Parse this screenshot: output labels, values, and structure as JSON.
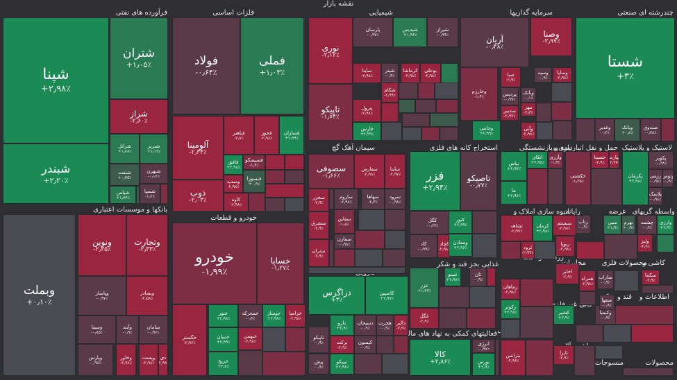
{
  "title": "نقشه بازار",
  "colors": {
    "g3": "#1b8a55",
    "g2": "#2a7b54",
    "g1": "#3d5b4c",
    "n": "#4a4a52",
    "r1": "#5a3a47",
    "r2": "#7d2e44",
    "r3": "#9a2540"
  },
  "headers": [
    {
      "id": "h-oil",
      "label": "فرآورده های نفتی"
    },
    {
      "id": "h-metal",
      "label": "فلزات اساسی"
    },
    {
      "id": "h-chem",
      "label": "شیمیایی"
    },
    {
      "id": "h-inv",
      "label": "سرمایه گذاریها"
    },
    {
      "id": "h-multi",
      "label": "چندرشته ای صنعتی"
    },
    {
      "id": "h-bank",
      "label": "بانکها و موسسات اعتباری"
    },
    {
      "id": "h-auto",
      "label": "خودرو و قطعات"
    },
    {
      "id": "h-cement",
      "label": "سیمان آهک گچ"
    },
    {
      "id": "h-mine",
      "label": "استخراج کانه های فلزی"
    },
    {
      "id": "h-insur",
      "label": "بیمه و بازنشستگی"
    },
    {
      "id": "h-trans",
      "label": "حمل و نقل انبارداری و"
    },
    {
      "id": "h-plast",
      "label": "لاستیک و پلاستیک"
    },
    {
      "id": "h-build",
      "label": "انبوه سازی املاک و"
    },
    {
      "id": "h-comp",
      "label": "رایانه"
    },
    {
      "id": "h-offer",
      "label": "عرضه"
    },
    {
      "id": "h-brok",
      "label": "واسطه گریهای"
    },
    {
      "id": "h-sugar",
      "label": "غذایی بجز قند و شکر"
    },
    {
      "id": "h-agri",
      "label": "زراعت و خدمات"
    },
    {
      "id": "h-tele",
      "label": "مخابرات"
    },
    {
      "id": "h-metalp",
      "label": "محصولات فلزی"
    },
    {
      "id": "h-tile",
      "label": "کاشی و"
    },
    {
      "id": "h-drug",
      "label": "دارویی"
    },
    {
      "id": "h-nonmet",
      "label": "کانی غیر فلزی"
    },
    {
      "id": "h-qand",
      "label": "قند و شکر"
    },
    {
      "id": "h-info",
      "label": "اطلاعات و"
    },
    {
      "id": "h-fin",
      "label": "فعالیتهای کمکی به نهاد های مالی"
    },
    {
      "id": "h-elec",
      "label": "دستگاههای برقی"
    },
    {
      "id": "h-mach",
      "label": "ماشین آلات و"
    },
    {
      "id": "h-wood",
      "label": "منسوجات"
    },
    {
      "id": "h-misc",
      "label": "محصولات"
    }
  ],
  "cells": [
    {
      "n": "شپنا",
      "p": "+۲٫۹۸٪",
      "c": "g3"
    },
    {
      "n": "شتران",
      "p": "+۱٫۰۵٪",
      "c": "g2"
    },
    {
      "n": "شبندر",
      "p": "+۲٫۲۰٪",
      "c": "g3"
    },
    {
      "n": "شراز",
      "p": "-۲٫۶۰٪",
      "c": "r3"
    },
    {
      "n": "شرانل",
      "p": "+۱٫۶۸٪",
      "c": "g2"
    },
    {
      "n": "شبریز",
      "p": "+۱٫۱۹٪",
      "c": "g2"
    },
    {
      "n": "شنفت",
      "p": "+۰٫۳۵٪",
      "c": "g1"
    },
    {
      "n": "شبهرن",
      "p": "-۰٫۱۶٪",
      "c": "r1"
    },
    {
      "n": "شیاس",
      "p": "+۱٫۷۴٪",
      "c": "g2"
    },
    {
      "n": "شسپا",
      "p": "-۱٫۲٪",
      "c": "r1"
    },
    {
      "n": "فولاد",
      "p": "-۰٫۶۴٪",
      "c": "r1"
    },
    {
      "n": "فملی",
      "p": "+۱٫۰۳٪",
      "c": "g2"
    },
    {
      "n": "آلومینا",
      "p": "-۲٫۳۴٪",
      "c": "r3"
    },
    {
      "n": "فباهنر",
      "p": "-۲٫۷٪",
      "c": "r3"
    },
    {
      "n": "فخوز",
      "p": "-۲٫۹۸٪",
      "c": "r3"
    },
    {
      "n": "فسازان",
      "p": "+۲٫۹۹٪",
      "c": "g3"
    },
    {
      "n": "ذوب",
      "p": "-۲٫۰۳٪",
      "c": "r3"
    },
    {
      "n": "فافق",
      "p": "+۲٫۹۸٪",
      "c": "g3"
    },
    {
      "n": "فسیسکو",
      "p": "-۱٫۴٪",
      "c": "r2"
    },
    {
      "n": "وسدید",
      "p": "-۲٫۹۸٪",
      "c": "r3"
    },
    {
      "n": "فنسوزا",
      "p": "+۰٫۹٪",
      "c": "g1"
    },
    {
      "n": "کاوه",
      "p": "-۲٫۹۸٪",
      "c": "r3"
    },
    {
      "n": "نوری",
      "p": "-۲٫۱۲٪",
      "c": "r3"
    },
    {
      "n": "پارسان",
      "p": "-۰٫۹۷٪",
      "c": "r1"
    },
    {
      "n": "شیدیس",
      "p": "+۱٫۹۶٪",
      "c": "g2"
    },
    {
      "n": "شیراز",
      "p": "-۰٫۹۹٪",
      "c": "r1"
    },
    {
      "n": "تاپیکو",
      "p": "-۱٫۷۴٪",
      "c": "r2"
    },
    {
      "n": "ساینا",
      "p": "-۲٫۹۸٪",
      "c": "r3"
    },
    {
      "n": "شپتر",
      "p": "-۰٫۴٪",
      "c": "r1"
    },
    {
      "n": "کرماشا",
      "p": "-۲٫۹۸٪",
      "c": "r3"
    },
    {
      "n": "بوعلی",
      "p": "-۲٫۹۸٪",
      "c": "r3"
    },
    {
      "n": "شکام",
      "p": "-۲٫۹۹٪",
      "c": "r3"
    },
    {
      "n": "پترول",
      "p": "-۲٫۹۸٪",
      "c": "r3"
    },
    {
      "n": "فارس",
      "p": "+۲٫۹۹٪",
      "c": "g3"
    },
    {
      "n": "آریان",
      "p": "-۰٫۴۸٪",
      "c": "r1"
    },
    {
      "n": "وصنا",
      "p": "-۲٫۹۷٪",
      "c": "r3"
    },
    {
      "n": "وخارزم",
      "p": "-۱٫۴٪",
      "c": "r2"
    },
    {
      "n": "صبا",
      "p": "-۲٫۹٪",
      "c": "r3"
    },
    {
      "n": "وسپه",
      "p": "-۰٫۹٪",
      "c": "r1"
    },
    {
      "n": "وساپا",
      "p": "-۲٫۹۸٪",
      "c": "r3"
    },
    {
      "n": "پردیس",
      "p": "-۰٫۹۷٪",
      "c": "r1"
    },
    {
      "n": "وبانک",
      "p": "-۰٫۱٪",
      "c": "r1"
    },
    {
      "n": "سدبیر",
      "p": "-۲٫۹۷٪",
      "c": "r3"
    },
    {
      "n": "مهر",
      "p": "-۲٫۳٪",
      "c": "r3"
    },
    {
      "n": "وآتی",
      "p": "-۲٫۹۸٪",
      "c": "r3"
    },
    {
      "n": "وجامی",
      "p": "+۲٫۹۹٪",
      "c": "g3"
    },
    {
      "n": "شستا",
      "p": "+۳٪",
      "c": "g3"
    },
    {
      "n": "وغدیر",
      "p": "-۰٫۲٪",
      "c": "r1"
    },
    {
      "n": "وبانک",
      "p": "+۰٫۸٪",
      "c": "g1"
    },
    {
      "n": "صندوق",
      "p": "-۰٫۷۸٪",
      "c": "r1"
    },
    {
      "n": "وبملت",
      "p": "+۰٫۱۰٪",
      "c": "n"
    },
    {
      "n": "ونوین",
      "p": "-۲٫۳۵٪",
      "c": "r3"
    },
    {
      "n": "وتجارت",
      "p": "-۲٫۳۳٪",
      "c": "r3"
    },
    {
      "n": "وپاسار",
      "p": "-۰٫۹۷٪",
      "c": "r1"
    },
    {
      "n": "وبصادر",
      "p": "-۲٫۵۸٪",
      "c": "r3"
    },
    {
      "n": "وسینا",
      "p": "-۰٫۸۵٪",
      "c": "r1"
    },
    {
      "n": "وآیند",
      "p": "-۰٫۹٪",
      "c": "r1"
    },
    {
      "n": "سامان",
      "p": "-۰٫۹۶٪",
      "c": "r1"
    },
    {
      "n": "وپارس",
      "p": "-۰٫۹۸٪",
      "c": "r1"
    },
    {
      "n": "وخاور",
      "p": "-۲٫۹۸٪",
      "c": "r3"
    },
    {
      "n": "وپست",
      "p": "-۲٫۹۸٪",
      "c": "r3"
    },
    {
      "n": "دی",
      "p": "-۲٫۹۸٪",
      "c": "r3"
    },
    {
      "n": "خودرو",
      "p": "-۱٫۹۹٪",
      "c": "r2"
    },
    {
      "n": "خساپا",
      "p": "-۱٫۲۷٪",
      "c": "r2"
    },
    {
      "n": "خگستر",
      "p": "-۲٫۹۶٪",
      "c": "r3"
    },
    {
      "n": "خنور",
      "p": "+۲٫۹۸٪",
      "c": "g3"
    },
    {
      "n": "خمحرکه",
      "p": "-۰٫۳٪",
      "c": "r1"
    },
    {
      "n": "خبهمن",
      "p": "-۲٫۹۸٪",
      "c": "r3"
    },
    {
      "n": "خوساز",
      "p": "+۲٫۹۸٪",
      "c": "g3"
    },
    {
      "n": "خزامیا",
      "p": "-۲٫۹۸٪",
      "c": "r3"
    },
    {
      "n": "خبنیان",
      "p": "+۲٫۹۹٪",
      "c": "g3"
    },
    {
      "n": "خریخ",
      "p": "+۲٫۸٪",
      "c": "g3"
    },
    {
      "n": "سصوفی",
      "p": "-۱٫۶۶٪",
      "c": "r2"
    },
    {
      "n": "سفارس",
      "p": "-۲٫۹۸٪",
      "c": "r3"
    },
    {
      "n": "ساینا",
      "p": "-۲٫۹۷٪",
      "c": "r3"
    },
    {
      "n": "سخزر",
      "p": "-۲٫۹٪",
      "c": "r3"
    },
    {
      "n": "ساروم",
      "p": "-۲٫۹۸٪",
      "c": "r1"
    },
    {
      "n": "سهاها",
      "p": "-۲٫۳٪",
      "c": "r1"
    },
    {
      "n": "سرود",
      "p": "-۰٫۹۸٪",
      "c": "r1"
    },
    {
      "n": "سشرق",
      "p": "-۲٫۹٪",
      "c": "r3"
    },
    {
      "n": "سقاین",
      "p": "-۱٫۸٪",
      "c": "r2"
    },
    {
      "n": "سمازن",
      "p": "-۰٫۹۸٪",
      "c": "r1"
    },
    {
      "n": "ستران",
      "p": "-۲٫۹٪",
      "c": "r3"
    },
    {
      "n": "فزر",
      "p": "+۲٫۹۴٪",
      "c": "g3"
    },
    {
      "n": "تاصیکو",
      "p": "-۰٫۷۷٪",
      "c": "r1"
    },
    {
      "n": "کگل",
      "p": "-۰٫۶۷٪",
      "c": "r1"
    },
    {
      "n": "کنور",
      "p": "+۲٫۹۹٪",
      "c": "g3"
    },
    {
      "n": "کاد",
      "p": "-۰٫۹۹٪",
      "c": "r1"
    },
    {
      "n": "کچاد",
      "p": "-۲٫۹۸٪",
      "c": "r3"
    },
    {
      "n": "ومعادن",
      "p": "+۲٫۹۶٪",
      "c": "g3"
    },
    {
      "n": "بپاس",
      "p": "+۲٫۹۷٪",
      "c": "g3"
    },
    {
      "n": "اتکای",
      "p": "+۲٫۹۸٪",
      "c": "g3"
    },
    {
      "n": "وآرزی",
      "p": "-۱٫۹٪",
      "c": "r2"
    },
    {
      "n": "ما",
      "p": "+۲٫۹۸٪",
      "c": "g3"
    },
    {
      "n": "حکشتی",
      "p": "-۱٫۲۵٪",
      "c": "r2"
    },
    {
      "n": "حسینا",
      "p": "-۲٫۹٪",
      "c": "r3"
    },
    {
      "n": "حپارسا",
      "p": "-۲٫۹۷٪",
      "c": "r3"
    },
    {
      "n": "پکرمان",
      "p": "+۲٫۹۸٪",
      "c": "g3"
    },
    {
      "n": "پکویر",
      "p": "-۰٫۹۸٪",
      "c": "r1"
    },
    {
      "n": "رزمی",
      "p": "-۰٫۹۸٪",
      "c": "r1"
    },
    {
      "n": "پلاسک",
      "p": "-۰٫۹۸٪",
      "c": "r1"
    },
    {
      "n": "وتوس",
      "p": "-۰٫۹٪",
      "c": "r1"
    },
    {
      "n": "ثشاهد",
      "p": "-۲٫۹۷٪",
      "c": "r3"
    },
    {
      "n": "کرمان",
      "p": "+۲٫۹۸٪",
      "c": "g3"
    },
    {
      "n": "ثرود",
      "p": "-۲٫۹۷٪",
      "c": "r3"
    },
    {
      "n": "سیستم",
      "p": "-۲٫۹۸٪",
      "c": "r3"
    },
    {
      "n": "رتاپ",
      "p": "-۰٫۹٪",
      "c": "r1"
    },
    {
      "n": "ریوپا",
      "p": "-۲٫۹۸٪",
      "c": "r3"
    },
    {
      "n": "مبین",
      "p": "+۱٫۹٪",
      "c": "g2"
    },
    {
      "n": "نهرم",
      "p": "+۰٫۹٪",
      "c": "g1"
    },
    {
      "n": "وارزی",
      "p": "+۲٫۹٪",
      "c": "g3"
    },
    {
      "n": "چشمه",
      "p": "-۰٫۹٪",
      "c": "r1"
    },
    {
      "n": "ولیز",
      "p": "-۲٫۹٪",
      "c": "r3"
    },
    {
      "n": "غزر",
      "p": "+۱٫۲۳٪",
      "c": "g2"
    },
    {
      "n": "غبینو",
      "p": "+۲٫۹۸٪",
      "c": "g3"
    },
    {
      "n": "تان",
      "p": "-۰٫۹٪",
      "c": "r1"
    },
    {
      "n": "غگل",
      "p": "-۲٫۹٪",
      "c": "r3"
    },
    {
      "n": "زماهان",
      "p": "-۲٫۹۸٪",
      "c": "r3"
    },
    {
      "n": "زکوثر",
      "p": "+۲٫۹۸٪",
      "c": "g3"
    },
    {
      "n": "اخابر",
      "p": "-۲٫۹٪",
      "c": "r3"
    },
    {
      "n": "همراه",
      "p": "-۲٫۹۸٪",
      "c": "r3"
    },
    {
      "n": "ساراب",
      "p": "-۰٫۹٪",
      "c": "r1"
    },
    {
      "n": "سکما",
      "p": "-۲٫۹٪",
      "c": "r3"
    },
    {
      "n": "دزاگرس",
      "p": "+۳٪",
      "c": "g3"
    },
    {
      "n": "کاسپین",
      "p": "+۲٫۹۷٪",
      "c": "g3"
    },
    {
      "n": "دارو",
      "p": "+۲٫۹٪",
      "c": "g3"
    },
    {
      "n": "دسبحان",
      "p": "-۰٫۹٪",
      "c": "r1"
    },
    {
      "n": "هجرت",
      "p": "-۰٫۹٪",
      "c": "r1"
    },
    {
      "n": "دالبر",
      "p": "-۲٫۹٪",
      "c": "r3"
    },
    {
      "n": "برکت",
      "p": "-۲٫۹٪",
      "c": "r3"
    },
    {
      "n": "کیسون",
      "p": "-۰٫۹٪",
      "c": "r1"
    },
    {
      "n": "پیش",
      "p": "-۰٫۹٪",
      "c": "r1"
    },
    {
      "n": "تیپیکو",
      "p": "+۲٫۹۸٪",
      "c": "g3"
    },
    {
      "n": "کالا",
      "p": "+۲٫۸۶٪",
      "c": "g3"
    },
    {
      "n": "انرژی",
      "p": "-۰٫۹۷٪",
      "c": "r1"
    },
    {
      "n": "بورس",
      "p": "+۲٫۹٪",
      "c": "g3"
    },
    {
      "n": "بترانس",
      "p": "-۲٫۹۶٪",
      "c": "r3"
    },
    {
      "n": "کشیر",
      "p": "+۲٫۹٪",
      "c": "g3"
    },
    {
      "n": "وکیمیا",
      "p": "-۰٫۹٪",
      "c": "r1"
    },
    {
      "n": "صفها",
      "p": "-۰٫۹٪",
      "c": "r1"
    },
    {
      "n": "تاپرا",
      "p": "-۲٫۹٪",
      "c": "r3"
    },
    {
      "n": "تاپیکو",
      "p": "-۰٫۹٪",
      "c": "r1"
    }
  ]
}
